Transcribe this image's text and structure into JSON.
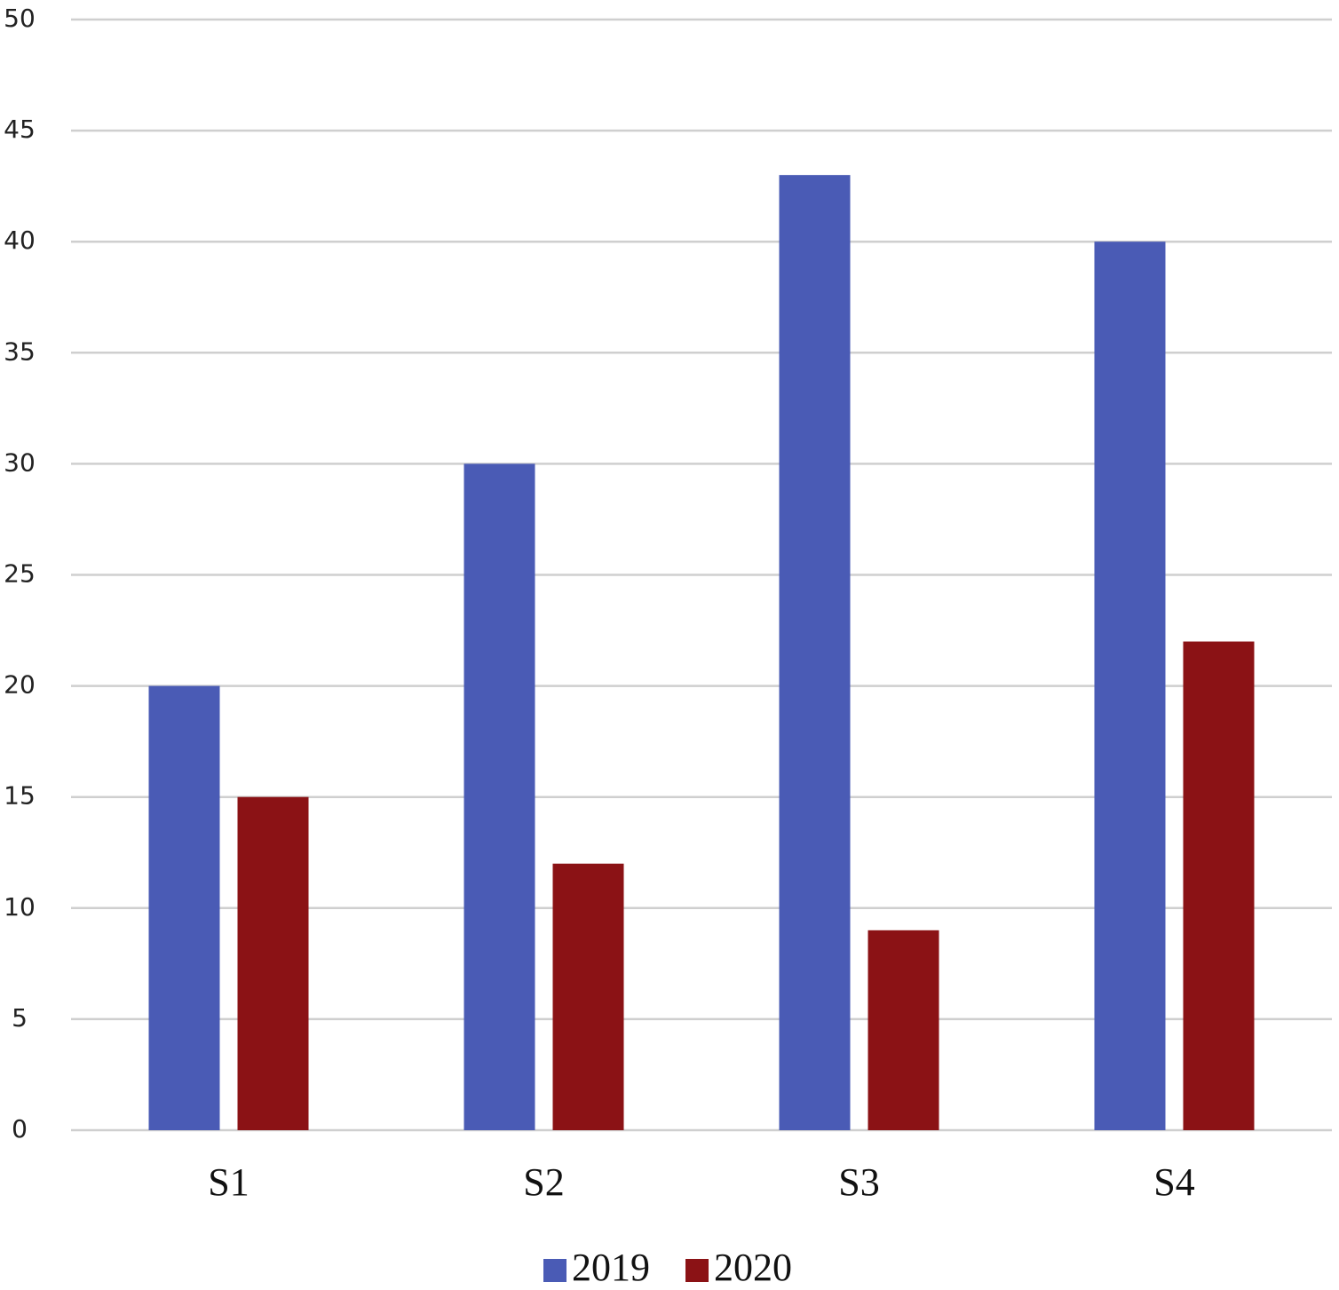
{
  "chart_data": {
    "type": "bar",
    "categories": [
      "S1",
      "S2",
      "S3",
      "S4"
    ],
    "series": [
      {
        "name": "2019",
        "color": "#4a5bb5",
        "values": [
          20,
          30,
          43,
          40
        ]
      },
      {
        "name": "2020",
        "color": "#8b1215",
        "values": [
          15,
          12,
          9,
          22
        ]
      }
    ],
    "ylim": [
      0,
      50
    ],
    "yticks": [
      0,
      5,
      10,
      15,
      20,
      25,
      30,
      35,
      40,
      45,
      50
    ],
    "grid": true,
    "legend": "bottom"
  }
}
